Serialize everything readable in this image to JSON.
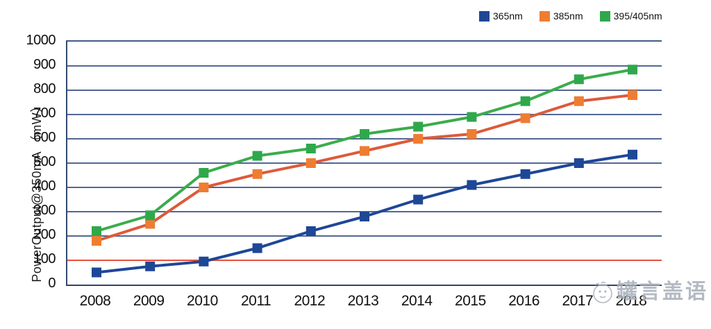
{
  "chart_data": {
    "type": "line",
    "title": "",
    "xlabel": "",
    "ylabel": "PowerOutput@350mA （mW）",
    "ylim": [
      0,
      1000
    ],
    "ytick_step": 100,
    "yticks": [
      0,
      100,
      200,
      300,
      400,
      500,
      600,
      700,
      800,
      900,
      1000
    ],
    "grid": true,
    "legend_position": "top-right",
    "categories": [
      "2008",
      "2009",
      "2010",
      "2011",
      "2012",
      "2013",
      "2014",
      "2015",
      "2016",
      "2017",
      "2018"
    ],
    "series": [
      {
        "name": "365nm",
        "color": "#1E4796",
        "marker_color": "#1E4796",
        "values": [
          50,
          75,
          95,
          150,
          220,
          280,
          350,
          410,
          455,
          500,
          535
        ]
      },
      {
        "name": "385nm",
        "color": "#DD5A3A",
        "marker_color": "#EF7D31",
        "values": [
          180,
          250,
          400,
          455,
          500,
          550,
          600,
          620,
          685,
          755,
          780
        ]
      },
      {
        "name": "395/405nm",
        "color": "#3BAC4B",
        "marker_color": "#2FA84C",
        "values": [
          220,
          285,
          460,
          530,
          560,
          620,
          650,
          690,
          755,
          845,
          885
        ]
      }
    ],
    "reference_line": {
      "value": 100,
      "color": "#E4503C"
    }
  },
  "colors": {
    "gridline": "#44598C",
    "plot_border": "#33496E",
    "background": "#ffffff"
  },
  "watermark": {
    "text": "罐言盖语",
    "icon": "face-doodle-icon"
  }
}
